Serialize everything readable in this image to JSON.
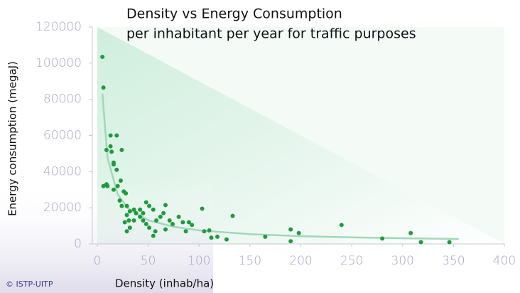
{
  "chart_data": {
    "type": "scatter",
    "title": "Density vs Energy Consumption",
    "subtitle": "per inhabitant per year for traffic purposes",
    "x_label": "Density (inhab/ha)",
    "y_label": "Energy consumption (megaJ)",
    "credit": "© ISTP-UITP",
    "color": "#1e9b3c",
    "x": [
      5,
      6,
      9,
      13,
      13,
      19,
      14,
      16,
      16,
      19,
      24,
      20,
      9,
      10,
      6,
      16,
      23,
      26,
      28,
      22,
      24,
      29,
      32,
      36,
      42,
      45,
      48,
      51,
      55,
      29,
      31,
      27,
      32,
      29,
      36,
      38,
      42,
      45,
      48,
      51,
      57,
      55,
      58,
      62,
      65,
      67,
      71,
      67,
      74,
      80,
      84,
      87,
      90,
      93,
      103,
      105,
      110,
      112,
      118,
      127,
      133,
      165,
      190,
      190,
      198,
      240,
      280,
      308,
      318,
      346
    ],
    "values": [
      103500,
      86500,
      52000,
      60000,
      54000,
      60000,
      51000,
      45000,
      44000,
      41000,
      52000,
      32000,
      33000,
      32000,
      32000,
      30000,
      35000,
      29000,
      28000,
      24000,
      21000,
      21000,
      18000,
      19000,
      19000,
      17000,
      23000,
      21000,
      19000,
      16000,
      13000,
      12000,
      9000,
      7000,
      13000,
      17000,
      15000,
      13000,
      11000,
      9000,
      7000,
      4500,
      13000,
      15000,
      17000,
      21500,
      13000,
      8000,
      11000,
      15000,
      12000,
      7000,
      12000,
      10500,
      19500,
      7000,
      7500,
      3500,
      4000,
      2500,
      15500,
      4000,
      8000,
      1500,
      6000,
      10500,
      3000,
      6000,
      1000,
      1000
    ],
    "trend": {
      "x": [
        5,
        10,
        20,
        30,
        50,
        75,
        100,
        150,
        200,
        250,
        300,
        355
      ],
      "values": [
        83000,
        47700,
        27400,
        19800,
        13100,
        9500,
        7500,
        5400,
        4300,
        3650,
        3150,
        2770
      ],
      "color": "#9fd8b8"
    },
    "xlim": [
      0,
      400
    ],
    "xticks": [
      0,
      50,
      100,
      150,
      200,
      250,
      300,
      350,
      400
    ],
    "ylim": [
      0,
      120000
    ],
    "yticks": [
      0,
      20000,
      40000,
      60000,
      80000,
      100000,
      120000
    ]
  }
}
